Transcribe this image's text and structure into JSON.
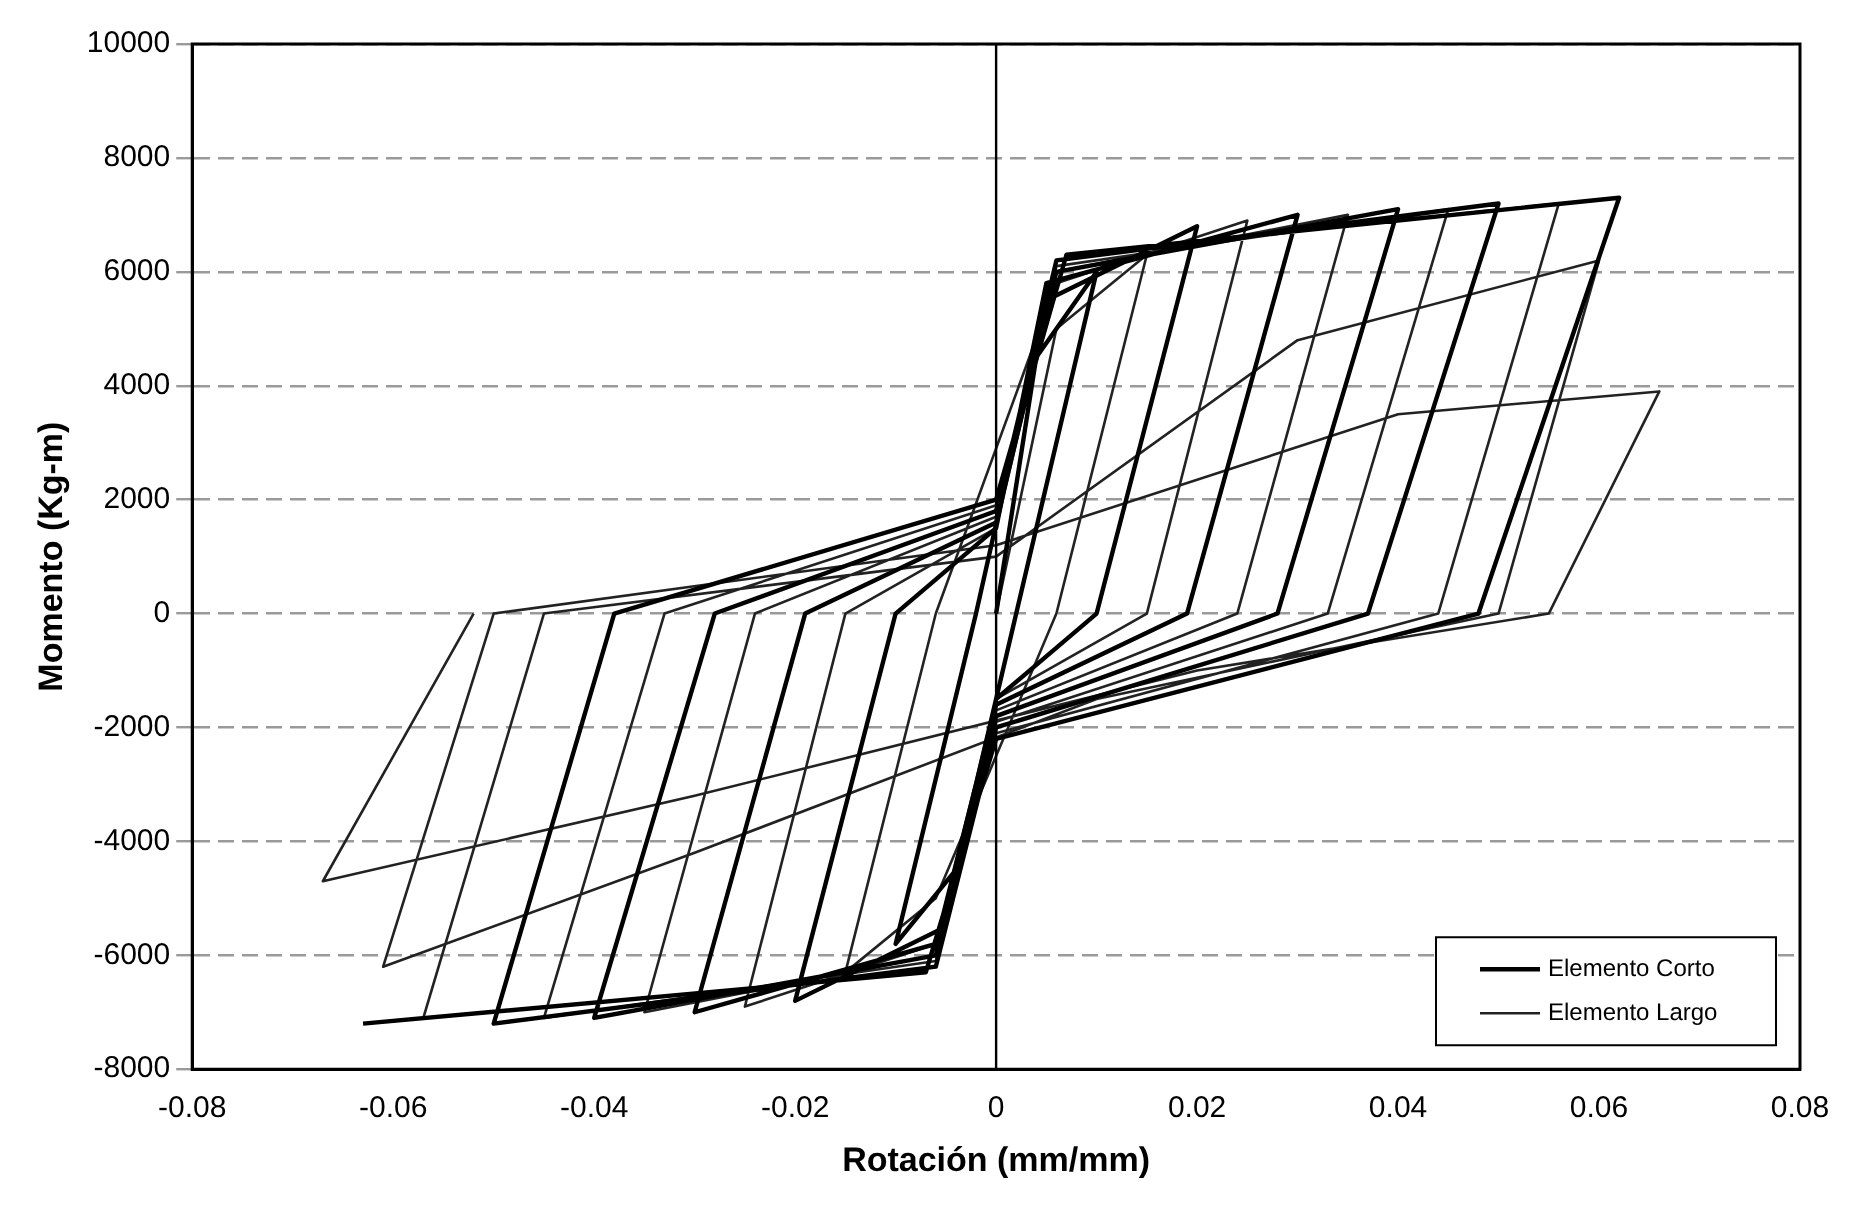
{
  "chart_data": {
    "type": "line",
    "xlabel": "Rotación (mm/mm)",
    "ylabel": "Momento (Kg-m)",
    "xlim": [
      -0.08,
      0.08
    ],
    "xticks": [
      -0.08,
      -0.06,
      -0.04,
      -0.02,
      0,
      0.02,
      0.04,
      0.06,
      0.08
    ],
    "ylim": [
      -8000,
      10000
    ],
    "yticks": [
      -8000,
      -6000,
      -4000,
      -2000,
      0,
      2000,
      4000,
      6000,
      8000,
      10000
    ],
    "grid": "y",
    "legend": "bottom right",
    "marker": "none",
    "line_style": "solid",
    "ref_lines": [
      {
        "axis": "x",
        "value": 0,
        "color": "#000000"
      }
    ],
    "series": [
      {
        "name": "Elemento Corto",
        "color": "#000000",
        "x": [
          0,
          0.004,
          0.01,
          0.002,
          -0.004,
          -0.01,
          -0.002,
          0.005,
          0.02,
          0.01,
          0,
          -0.005,
          -0.02,
          -0.01,
          0,
          0.005,
          0.03,
          0.019,
          0,
          -0.006,
          -0.03,
          -0.019,
          0,
          0.006,
          0.04,
          0.028,
          0,
          -0.006,
          -0.04,
          -0.028,
          0,
          0.006,
          0.05,
          0.037,
          0,
          -0.006,
          -0.05,
          -0.038,
          0,
          0.007,
          0.062,
          0.048,
          0,
          -0.007,
          -0.063
        ],
        "values": [
          0,
          4500,
          6000,
          0,
          -4500,
          -5800,
          0,
          5500,
          6800,
          0,
          -1500,
          -5500,
          -6800,
          0,
          1500,
          5800,
          7000,
          0,
          -1600,
          -5800,
          -7000,
          0,
          1600,
          6000,
          7100,
          0,
          -1800,
          -6000,
          -7100,
          0,
          1800,
          6200,
          7200,
          0,
          -2000,
          -6200,
          -7200,
          0,
          2000,
          6300,
          7300,
          0,
          -2200,
          -6300,
          -7200
        ]
      },
      {
        "name": "Elemento Largo",
        "color": "#222222",
        "x": [
          0,
          0.006,
          0.015,
          0.006,
          -0.006,
          -0.015,
          -0.006,
          0.006,
          0.025,
          0.015,
          0,
          -0.006,
          -0.025,
          -0.015,
          0,
          0.006,
          0.035,
          0.024,
          0,
          -0.006,
          -0.035,
          -0.024,
          0,
          0.006,
          0.045,
          0.033,
          0,
          -0.006,
          -0.045,
          -0.033,
          0,
          0.007,
          0.056,
          0.044,
          0,
          -0.007,
          -0.057,
          -0.045,
          0,
          0.03,
          0.06,
          0.05,
          0.01,
          -0.03,
          -0.061,
          -0.05,
          0,
          0.04,
          0.066,
          0.055,
          0.02,
          -0.03,
          -0.067,
          -0.052
        ],
        "values": [
          0,
          5000,
          6300,
          0,
          -5000,
          -6300,
          0,
          5800,
          6900,
          0,
          -1500,
          -5800,
          -6900,
          0,
          1500,
          6000,
          7000,
          0,
          -1700,
          -6000,
          -7000,
          0,
          1700,
          6100,
          7100,
          0,
          -1900,
          -6100,
          -7100,
          0,
          1900,
          6300,
          7200,
          0,
          -2100,
          -6300,
          -7100,
          0,
          1000,
          4800,
          6200,
          0,
          -1500,
          -4200,
          -6200,
          0,
          1200,
          3500,
          3900,
          0,
          -1000,
          -3200,
          -4700,
          0
        ]
      }
    ]
  }
}
